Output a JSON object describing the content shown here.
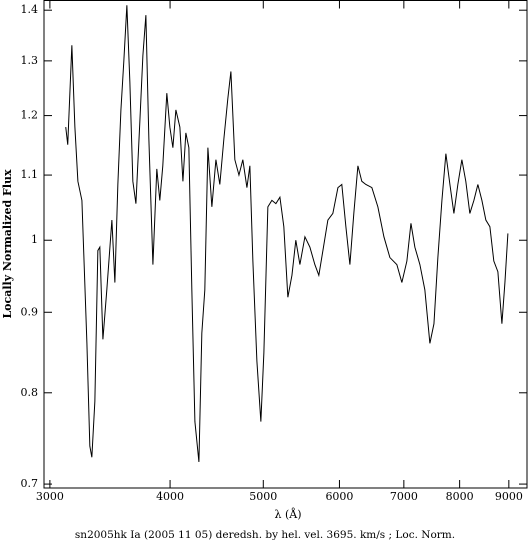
{
  "chart_data": {
    "type": "line",
    "xlabel": "λ (Å)",
    "ylabel": "Locally Normalized Flux",
    "caption": "sn2005hk Ia (2005 11 05) deredsh. by hel. vel.  3695. km/s ;  Loc. Norm.",
    "xscale": "log",
    "yscale": "log",
    "xlim": [
      2958,
      9400
    ],
    "ylim": [
      0.696,
      1.42
    ],
    "xticks": [
      3000,
      4000,
      5000,
      6000,
      7000,
      8000,
      9000
    ],
    "yticks": [
      0.7,
      0.8,
      0.9,
      1,
      1.1,
      1.2,
      1.3,
      1.4
    ],
    "series": [
      {
        "color": "#000000",
        "x": [
          3116,
          3131,
          3147,
          3162,
          3185,
          3208,
          3239,
          3278,
          3301,
          3317,
          3341,
          3365,
          3381,
          3406,
          3438,
          3480,
          3505,
          3530,
          3556,
          3581,
          3607,
          3633,
          3659,
          3686,
          3721,
          3748,
          3775,
          3802,
          3839,
          3875,
          3903,
          3931,
          3969,
          3998,
          4027,
          4056,
          4095,
          4125,
          4154,
          4184,
          4214,
          4245,
          4286,
          4316,
          4347,
          4379,
          4421,
          4464,
          4506,
          4550,
          4593,
          4627,
          4671,
          4717,
          4761,
          4808,
          4842,
          4877,
          4924,
          4971,
          5007,
          5055,
          5104,
          5153,
          5203,
          5252,
          5303,
          5355,
          5405,
          5458,
          5524,
          5590,
          5657,
          5711,
          5767,
          5836,
          5906,
          5978,
          6034,
          6093,
          6152,
          6210,
          6271,
          6330,
          6392,
          6484,
          6578,
          6674,
          6770,
          6884,
          6967,
          7051,
          7120,
          7187,
          7274,
          7361,
          7450,
          7523,
          7594,
          7668,
          7741,
          7816,
          7891,
          7966,
          8043,
          8119,
          8198,
          8278,
          8357,
          8438,
          8518,
          8601,
          8682,
          8767,
          8852,
          8916,
          8980
        ],
        "values": [
          1.18,
          1.15,
          1.24,
          1.33,
          1.18,
          1.09,
          1.06,
          0.86,
          0.74,
          0.728,
          0.79,
          0.985,
          0.99,
          0.865,
          0.93,
          1.03,
          0.94,
          1.085,
          1.21,
          1.3,
          1.41,
          1.26,
          1.09,
          1.055,
          1.19,
          1.31,
          1.39,
          1.16,
          0.965,
          1.11,
          1.06,
          1.115,
          1.24,
          1.18,
          1.145,
          1.21,
          1.18,
          1.09,
          1.17,
          1.145,
          0.93,
          0.767,
          0.723,
          0.873,
          0.93,
          1.145,
          1.05,
          1.125,
          1.085,
          1.16,
          1.23,
          1.28,
          1.125,
          1.1,
          1.125,
          1.08,
          1.115,
          0.97,
          0.838,
          0.767,
          0.848,
          1.05,
          1.06,
          1.055,
          1.065,
          1.02,
          0.92,
          0.95,
          1.0,
          0.965,
          1.005,
          0.99,
          0.965,
          0.95,
          0.985,
          1.03,
          1.04,
          1.08,
          1.085,
          1.02,
          0.965,
          1.04,
          1.115,
          1.09,
          1.085,
          1.08,
          1.05,
          1.005,
          0.975,
          0.965,
          0.94,
          0.97,
          1.025,
          0.99,
          0.965,
          0.93,
          0.86,
          0.885,
          0.975,
          1.06,
          1.135,
          1.085,
          1.04,
          1.085,
          1.125,
          1.09,
          1.04,
          1.06,
          1.085,
          1.06,
          1.03,
          1.02,
          0.97,
          0.955,
          0.885,
          0.94,
          1.01
        ]
      }
    ]
  }
}
